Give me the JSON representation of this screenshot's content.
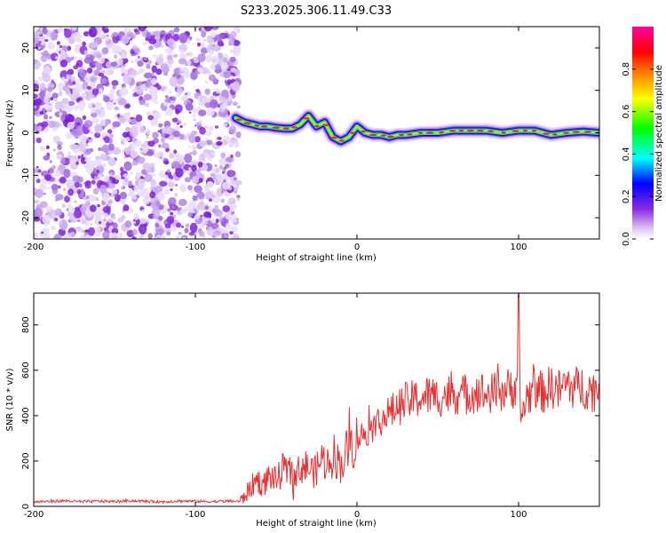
{
  "title": "S233.2025.306.11.49.C33",
  "chart_data": [
    {
      "type": "heatmap",
      "panel": "spectrogram",
      "xlabel": "Height of straight line (km)",
      "ylabel": "Frequency (Hz)",
      "xlim": [
        -200,
        150
      ],
      "ylim": [
        -25,
        25
      ],
      "xticks": [
        -200,
        -100,
        0,
        100
      ],
      "xtick_labels": [
        "-200",
        "-100",
        "0",
        "100"
      ],
      "yticks": [
        -20,
        -10,
        0,
        10,
        20
      ],
      "ytick_labels": [
        "-20",
        "-10",
        "0",
        "10",
        "20"
      ],
      "noise_region_x": [
        -200,
        -75
      ],
      "signal_trace": {
        "x": [
          -75,
          -70,
          -65,
          -60,
          -55,
          -50,
          -45,
          -40,
          -35,
          -30,
          -25,
          -20,
          -15,
          -10,
          -5,
          0,
          5,
          10,
          15,
          20,
          25,
          30,
          40,
          50,
          60,
          70,
          80,
          90,
          100,
          110,
          120,
          130,
          140,
          150
        ],
        "y": [
          3.5,
          2.5,
          2,
          1.5,
          1.5,
          1.2,
          1,
          1,
          2,
          4,
          1.5,
          2.5,
          -1,
          -2,
          -1,
          1.5,
          0,
          -0.5,
          -0.5,
          -1,
          -0.5,
          -0.5,
          0,
          0,
          0.5,
          0.5,
          0.5,
          0,
          0.5,
          0.5,
          -0.5,
          0,
          0.3,
          0
        ]
      },
      "colorbar": {
        "label": "Normalized spectral amplitude",
        "range": [
          0,
          1
        ],
        "ticks": [
          0.0,
          0.2,
          0.4,
          0.6,
          0.8
        ],
        "tick_labels": [
          "0.0",
          "0.2",
          "0.4",
          "0.6",
          "0.8"
        ],
        "colors": [
          "#ffffff",
          "#dcc6f0",
          "#8a2be2",
          "#0000ff",
          "#00ffff",
          "#00ff00",
          "#ffff00",
          "#ff8000",
          "#ff0000",
          "#ff00a0"
        ]
      }
    },
    {
      "type": "line",
      "panel": "snr",
      "xlabel": "Height of straight line (km)",
      "ylabel": "SNR (10 * v/v)",
      "xlim": [
        -200,
        150
      ],
      "ylim": [
        0,
        940
      ],
      "xticks": [
        -200,
        -100,
        0,
        100
      ],
      "xtick_labels": [
        "-200",
        "-100",
        "0",
        "100"
      ],
      "yticks": [
        0,
        200,
        400,
        600,
        800
      ],
      "ytick_labels": [
        "0",
        "200",
        "400",
        "600",
        "800"
      ],
      "color": "#e83030",
      "series": [
        {
          "name": "SNR",
          "x": [
            -200,
            -190,
            -180,
            -170,
            -160,
            -150,
            -140,
            -130,
            -120,
            -110,
            -100,
            -90,
            -80,
            -72,
            -66,
            -62,
            -58,
            -54,
            -50,
            -46,
            -42,
            -38,
            -34,
            -30,
            -26,
            -22,
            -18,
            -14,
            -10,
            -6,
            -2,
            2,
            6,
            10,
            14,
            18,
            22,
            26,
            30,
            35,
            40,
            45,
            50,
            55,
            60,
            65,
            70,
            75,
            80,
            85,
            90,
            95,
            99,
            100,
            101,
            105,
            110,
            115,
            120,
            125,
            130,
            135,
            140,
            145,
            150
          ],
          "y": [
            20,
            22,
            24,
            20,
            23,
            21,
            25,
            22,
            20,
            24,
            22,
            21,
            23,
            22,
            80,
            120,
            90,
            140,
            110,
            160,
            150,
            130,
            180,
            170,
            150,
            210,
            190,
            230,
            180,
            250,
            280,
            310,
            330,
            350,
            380,
            400,
            420,
            440,
            460,
            470,
            480,
            490,
            480,
            490,
            500,
            490,
            500,
            510,
            490,
            500,
            510,
            520,
            540,
            930,
            380,
            480,
            520,
            500,
            530,
            510,
            540,
            520,
            530,
            510,
            520
          ]
        }
      ]
    }
  ]
}
